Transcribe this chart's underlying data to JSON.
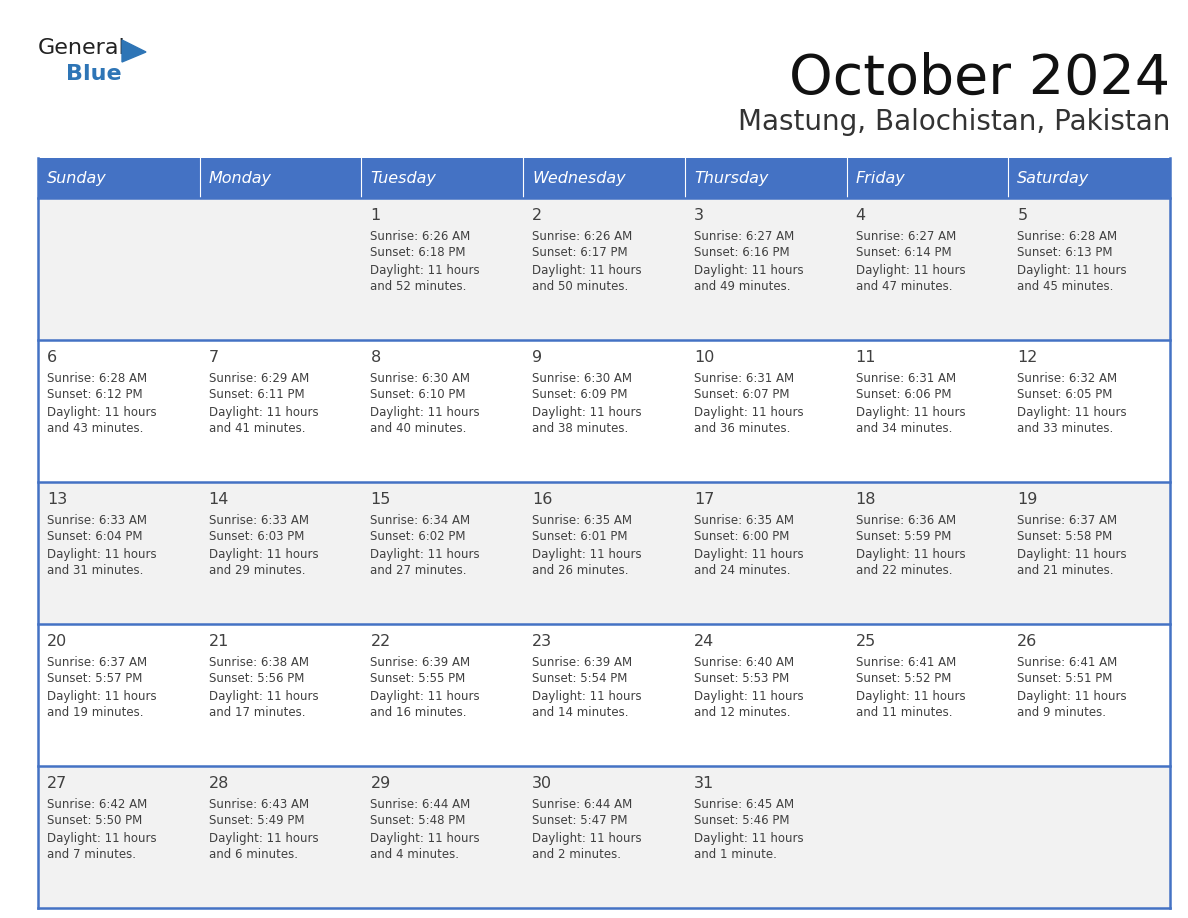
{
  "title": "October 2024",
  "subtitle": "Mastung, Balochistan, Pakistan",
  "header_bg_color": "#4472C4",
  "header_text_color": "#FFFFFF",
  "weekdays": [
    "Sunday",
    "Monday",
    "Tuesday",
    "Wednesday",
    "Thursday",
    "Friday",
    "Saturday"
  ],
  "row_colors": [
    "#F2F2F2",
    "#FFFFFF"
  ],
  "border_color": "#4472C4",
  "text_color": "#404040",
  "logo_blue": "#2E75B6",
  "logo_dark": "#222222",
  "calendar_data": [
    [
      {
        "day": "",
        "sunrise": "",
        "sunset": "",
        "daylight": ""
      },
      {
        "day": "",
        "sunrise": "",
        "sunset": "",
        "daylight": ""
      },
      {
        "day": "1",
        "sunrise": "Sunrise: 6:26 AM",
        "sunset": "Sunset: 6:18 PM",
        "daylight": "Daylight: 11 hours\nand 52 minutes."
      },
      {
        "day": "2",
        "sunrise": "Sunrise: 6:26 AM",
        "sunset": "Sunset: 6:17 PM",
        "daylight": "Daylight: 11 hours\nand 50 minutes."
      },
      {
        "day": "3",
        "sunrise": "Sunrise: 6:27 AM",
        "sunset": "Sunset: 6:16 PM",
        "daylight": "Daylight: 11 hours\nand 49 minutes."
      },
      {
        "day": "4",
        "sunrise": "Sunrise: 6:27 AM",
        "sunset": "Sunset: 6:14 PM",
        "daylight": "Daylight: 11 hours\nand 47 minutes."
      },
      {
        "day": "5",
        "sunrise": "Sunrise: 6:28 AM",
        "sunset": "Sunset: 6:13 PM",
        "daylight": "Daylight: 11 hours\nand 45 minutes."
      }
    ],
    [
      {
        "day": "6",
        "sunrise": "Sunrise: 6:28 AM",
        "sunset": "Sunset: 6:12 PM",
        "daylight": "Daylight: 11 hours\nand 43 minutes."
      },
      {
        "day": "7",
        "sunrise": "Sunrise: 6:29 AM",
        "sunset": "Sunset: 6:11 PM",
        "daylight": "Daylight: 11 hours\nand 41 minutes."
      },
      {
        "day": "8",
        "sunrise": "Sunrise: 6:30 AM",
        "sunset": "Sunset: 6:10 PM",
        "daylight": "Daylight: 11 hours\nand 40 minutes."
      },
      {
        "day": "9",
        "sunrise": "Sunrise: 6:30 AM",
        "sunset": "Sunset: 6:09 PM",
        "daylight": "Daylight: 11 hours\nand 38 minutes."
      },
      {
        "day": "10",
        "sunrise": "Sunrise: 6:31 AM",
        "sunset": "Sunset: 6:07 PM",
        "daylight": "Daylight: 11 hours\nand 36 minutes."
      },
      {
        "day": "11",
        "sunrise": "Sunrise: 6:31 AM",
        "sunset": "Sunset: 6:06 PM",
        "daylight": "Daylight: 11 hours\nand 34 minutes."
      },
      {
        "day": "12",
        "sunrise": "Sunrise: 6:32 AM",
        "sunset": "Sunset: 6:05 PM",
        "daylight": "Daylight: 11 hours\nand 33 minutes."
      }
    ],
    [
      {
        "day": "13",
        "sunrise": "Sunrise: 6:33 AM",
        "sunset": "Sunset: 6:04 PM",
        "daylight": "Daylight: 11 hours\nand 31 minutes."
      },
      {
        "day": "14",
        "sunrise": "Sunrise: 6:33 AM",
        "sunset": "Sunset: 6:03 PM",
        "daylight": "Daylight: 11 hours\nand 29 minutes."
      },
      {
        "day": "15",
        "sunrise": "Sunrise: 6:34 AM",
        "sunset": "Sunset: 6:02 PM",
        "daylight": "Daylight: 11 hours\nand 27 minutes."
      },
      {
        "day": "16",
        "sunrise": "Sunrise: 6:35 AM",
        "sunset": "Sunset: 6:01 PM",
        "daylight": "Daylight: 11 hours\nand 26 minutes."
      },
      {
        "day": "17",
        "sunrise": "Sunrise: 6:35 AM",
        "sunset": "Sunset: 6:00 PM",
        "daylight": "Daylight: 11 hours\nand 24 minutes."
      },
      {
        "day": "18",
        "sunrise": "Sunrise: 6:36 AM",
        "sunset": "Sunset: 5:59 PM",
        "daylight": "Daylight: 11 hours\nand 22 minutes."
      },
      {
        "day": "19",
        "sunrise": "Sunrise: 6:37 AM",
        "sunset": "Sunset: 5:58 PM",
        "daylight": "Daylight: 11 hours\nand 21 minutes."
      }
    ],
    [
      {
        "day": "20",
        "sunrise": "Sunrise: 6:37 AM",
        "sunset": "Sunset: 5:57 PM",
        "daylight": "Daylight: 11 hours\nand 19 minutes."
      },
      {
        "day": "21",
        "sunrise": "Sunrise: 6:38 AM",
        "sunset": "Sunset: 5:56 PM",
        "daylight": "Daylight: 11 hours\nand 17 minutes."
      },
      {
        "day": "22",
        "sunrise": "Sunrise: 6:39 AM",
        "sunset": "Sunset: 5:55 PM",
        "daylight": "Daylight: 11 hours\nand 16 minutes."
      },
      {
        "day": "23",
        "sunrise": "Sunrise: 6:39 AM",
        "sunset": "Sunset: 5:54 PM",
        "daylight": "Daylight: 11 hours\nand 14 minutes."
      },
      {
        "day": "24",
        "sunrise": "Sunrise: 6:40 AM",
        "sunset": "Sunset: 5:53 PM",
        "daylight": "Daylight: 11 hours\nand 12 minutes."
      },
      {
        "day": "25",
        "sunrise": "Sunrise: 6:41 AM",
        "sunset": "Sunset: 5:52 PM",
        "daylight": "Daylight: 11 hours\nand 11 minutes."
      },
      {
        "day": "26",
        "sunrise": "Sunrise: 6:41 AM",
        "sunset": "Sunset: 5:51 PM",
        "daylight": "Daylight: 11 hours\nand 9 minutes."
      }
    ],
    [
      {
        "day": "27",
        "sunrise": "Sunrise: 6:42 AM",
        "sunset": "Sunset: 5:50 PM",
        "daylight": "Daylight: 11 hours\nand 7 minutes."
      },
      {
        "day": "28",
        "sunrise": "Sunrise: 6:43 AM",
        "sunset": "Sunset: 5:49 PM",
        "daylight": "Daylight: 11 hours\nand 6 minutes."
      },
      {
        "day": "29",
        "sunrise": "Sunrise: 6:44 AM",
        "sunset": "Sunset: 5:48 PM",
        "daylight": "Daylight: 11 hours\nand 4 minutes."
      },
      {
        "day": "30",
        "sunrise": "Sunrise: 6:44 AM",
        "sunset": "Sunset: 5:47 PM",
        "daylight": "Daylight: 11 hours\nand 2 minutes."
      },
      {
        "day": "31",
        "sunrise": "Sunrise: 6:45 AM",
        "sunset": "Sunset: 5:46 PM",
        "daylight": "Daylight: 11 hours\nand 1 minute."
      },
      {
        "day": "",
        "sunrise": "",
        "sunset": "",
        "daylight": ""
      },
      {
        "day": "",
        "sunrise": "",
        "sunset": "",
        "daylight": ""
      }
    ]
  ],
  "fig_width": 11.88,
  "fig_height": 9.18,
  "dpi": 100
}
